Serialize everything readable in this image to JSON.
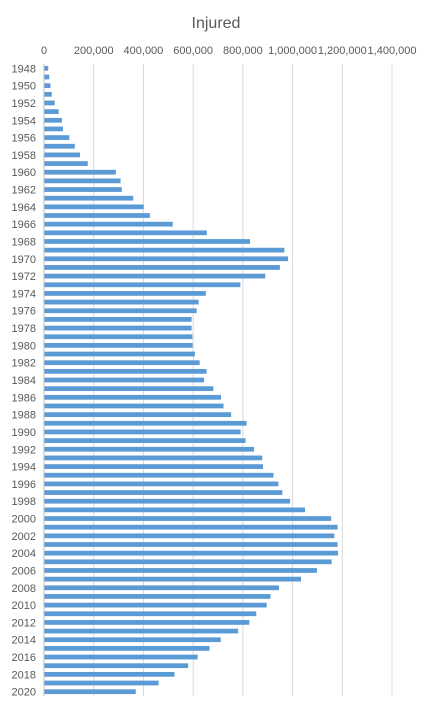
{
  "chart_data": {
    "type": "bar",
    "orientation": "horizontal",
    "title": "Injured",
    "xlabel": "",
    "ylabel": "",
    "xlim": [
      0,
      1400000
    ],
    "x_ticks": [
      0,
      200000,
      400000,
      600000,
      800000,
      1000000,
      1200000,
      1400000
    ],
    "x_tick_labels": [
      "0",
      "200,000",
      "400,000",
      "600,000",
      "800,000",
      "1,000,000",
      "1,200,000",
      "1,400,000"
    ],
    "y_tick_labels": [
      "1948",
      "1950",
      "1952",
      "1954",
      "1956",
      "1958",
      "1960",
      "1962",
      "1964",
      "1966",
      "1968",
      "1970",
      "1972",
      "1974",
      "1976",
      "1978",
      "1980",
      "1982",
      "1984",
      "1986",
      "1988",
      "1990",
      "1992",
      "1994",
      "1996",
      "1998",
      "2000",
      "2002",
      "2004",
      "2006",
      "2008",
      "2010",
      "2012",
      "2014",
      "2016",
      "2018",
      "2020"
    ],
    "grid": true,
    "legend": "none",
    "bar_color": "#5b9bd5",
    "categories": [
      "1948",
      "1949",
      "1950",
      "1951",
      "1952",
      "1953",
      "1954",
      "1955",
      "1956",
      "1957",
      "1958",
      "1959",
      "1960",
      "1961",
      "1962",
      "1963",
      "1964",
      "1965",
      "1966",
      "1967",
      "1968",
      "1969",
      "1970",
      "1971",
      "1972",
      "1973",
      "1974",
      "1975",
      "1976",
      "1977",
      "1978",
      "1979",
      "1980",
      "1981",
      "1982",
      "1983",
      "1984",
      "1985",
      "1986",
      "1987",
      "1988",
      "1989",
      "1990",
      "1991",
      "1992",
      "1993",
      "1994",
      "1995",
      "1996",
      "1997",
      "1998",
      "1999",
      "2000",
      "2001",
      "2002",
      "2003",
      "2004",
      "2005",
      "2006",
      "2007",
      "2008",
      "2009",
      "2010",
      "2011",
      "2012",
      "2013",
      "2014",
      "2015",
      "2016",
      "2017",
      "2018",
      "2019",
      "2020"
    ],
    "values": [
      17000,
      21000,
      26000,
      31000,
      43000,
      59000,
      72000,
      76000,
      102000,
      124000,
      145000,
      176000,
      289000,
      308000,
      313000,
      359000,
      401000,
      426000,
      518000,
      655000,
      829000,
      967000,
      982000,
      949000,
      890000,
      790000,
      651000,
      622000,
      614000,
      594000,
      594000,
      597000,
      598000,
      607000,
      626000,
      654000,
      644000,
      681000,
      712000,
      722000,
      753000,
      815000,
      791000,
      811000,
      845000,
      878000,
      881000,
      923000,
      943000,
      959000,
      990000,
      1050000,
      1155000,
      1181000,
      1168000,
      1181000,
      1183000,
      1157000,
      1098000,
      1034000,
      945000,
      911000,
      896000,
      854000,
      826000,
      781000,
      711000,
      666000,
      618000,
      580000,
      525000,
      461000,
      369000
    ]
  }
}
